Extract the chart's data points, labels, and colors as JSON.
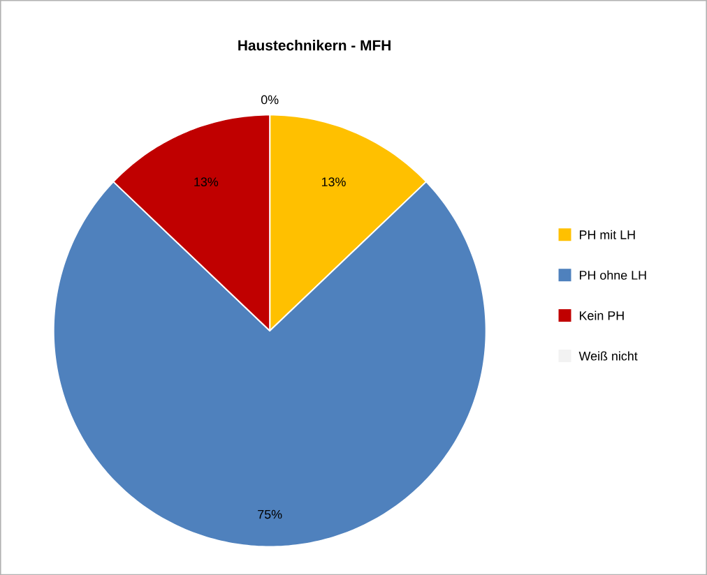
{
  "chart_data": {
    "type": "pie",
    "title": "Haustechnikern - MFH",
    "categories": [
      "PH mit LH",
      "PH ohne LH",
      "Kein PH",
      "Weiß nicht"
    ],
    "values": [
      13,
      75,
      13,
      0
    ],
    "colors": [
      "#ffc000",
      "#4f81bd",
      "#c00000",
      "#f2f2f2"
    ],
    "value_labels": [
      "13%",
      "75%",
      "13%",
      "0%"
    ],
    "legend": "right"
  }
}
